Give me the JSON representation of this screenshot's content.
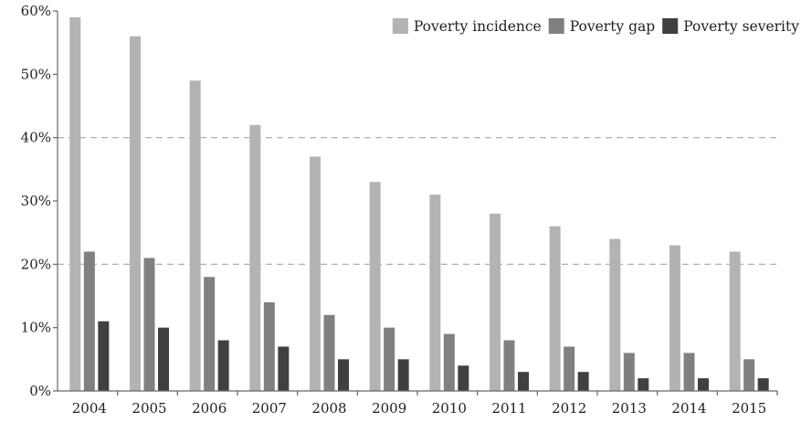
{
  "chart_data": {
    "type": "bar",
    "categories": [
      "2004",
      "2005",
      "2006",
      "2007",
      "2008",
      "2009",
      "2010",
      "2011",
      "2012",
      "2013",
      "2014",
      "2015"
    ],
    "series": [
      {
        "name": "Poverty incidence",
        "color": "#b3b3b3",
        "values": [
          59,
          56,
          49,
          42,
          37,
          33,
          31,
          28,
          26,
          24,
          23,
          22
        ]
      },
      {
        "name": "Poverty gap",
        "color": "#808080",
        "values": [
          22,
          21,
          18,
          14,
          12,
          10,
          9,
          8,
          7,
          6,
          6,
          5
        ]
      },
      {
        "name": "Poverty severity",
        "color": "#404040",
        "values": [
          11,
          10,
          8,
          7,
          5,
          5,
          4,
          3,
          3,
          2,
          2,
          2
        ]
      }
    ],
    "title": "",
    "xlabel": "",
    "ylabel": "",
    "ylim": [
      0,
      60
    ],
    "y_tick_labels": [
      "0%",
      "10%",
      "20%",
      "30%",
      "40%",
      "50%",
      "60%"
    ],
    "gridlines": [
      20,
      40
    ],
    "legend_position": "top-right"
  }
}
